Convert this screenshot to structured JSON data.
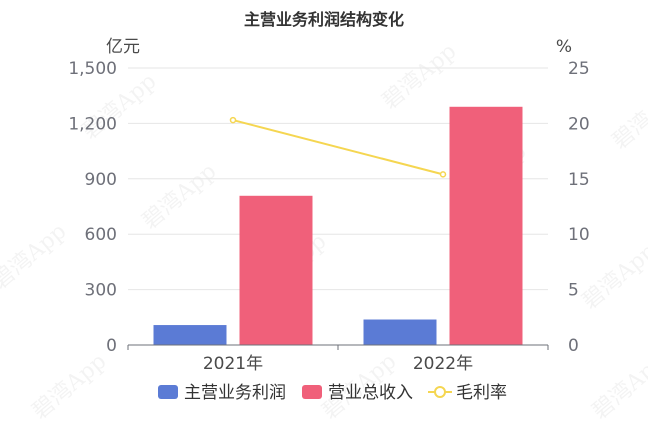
{
  "watermark": "碧湾App",
  "chart_data": {
    "type": "bar",
    "title": "主营业务利润结构变化",
    "categories": [
      "2021年",
      "2022年"
    ],
    "left_axis": {
      "unit": "亿元",
      "ylim": [
        0,
        1500
      ],
      "ticks": [
        "0",
        "300",
        "600",
        "900",
        "1,200",
        "1,500"
      ],
      "tick_values": [
        0,
        300,
        600,
        900,
        1200,
        1500
      ]
    },
    "right_axis": {
      "unit": "%",
      "ylim": [
        0,
        25
      ],
      "ticks": [
        "0",
        "5",
        "10",
        "15",
        "20",
        "25"
      ],
      "tick_values": [
        0,
        5,
        10,
        15,
        20,
        25
      ]
    },
    "series": [
      {
        "name": "主营业务利润",
        "type": "bar",
        "axis": "left",
        "color": "#5b7bd5",
        "values": [
          108,
          138
        ]
      },
      {
        "name": "营业总收入",
        "type": "bar",
        "axis": "left",
        "color": "#f0607a",
        "values": [
          808,
          1290
        ]
      },
      {
        "name": "毛利率",
        "type": "line",
        "axis": "right",
        "color": "#f5d651",
        "values": [
          20.3,
          15.4
        ]
      }
    ],
    "grid": true,
    "legend": "bottom-center"
  }
}
